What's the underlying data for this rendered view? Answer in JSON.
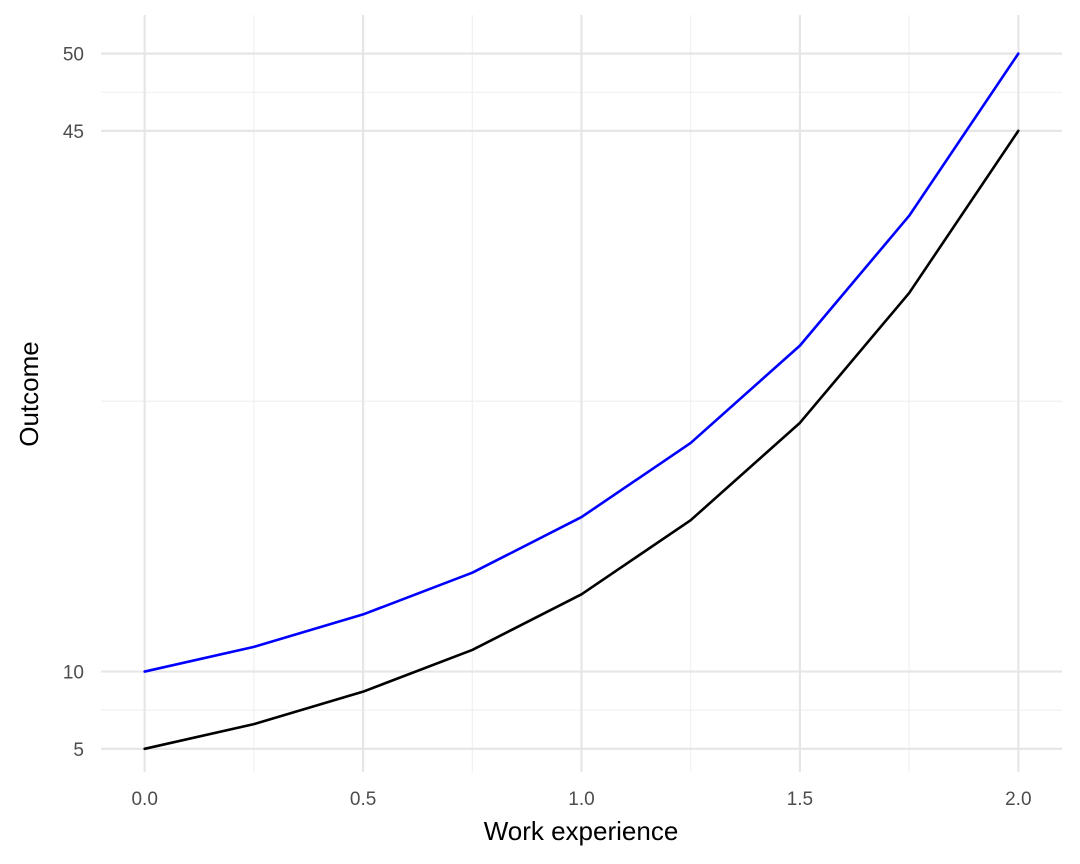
{
  "chart_data": {
    "type": "line",
    "title": "",
    "xlabel": "Work experience",
    "ylabel": "Outcome",
    "xlim": [
      -0.1,
      2.1
    ],
    "ylim": [
      3.5,
      52.5
    ],
    "x_ticks": [
      0.0,
      0.5,
      1.0,
      1.5,
      2.0
    ],
    "x_tick_labels": [
      "0.0",
      "0.5",
      "1.0",
      "1.5",
      "2.0"
    ],
    "y_ticks": [
      5,
      10,
      45,
      50
    ],
    "y_tick_labels": [
      "5",
      "10",
      "45",
      "50"
    ],
    "x_minor_ticks": [
      0.25,
      0.75,
      1.25,
      1.75
    ],
    "y_minor_ticks": [
      7.5,
      27.5,
      47.5
    ],
    "grid": true,
    "legend": "none",
    "series": [
      {
        "color": "#0000ff",
        "x": [
          0.0,
          0.25,
          0.5,
          0.75,
          1.0,
          1.25,
          1.5,
          1.75,
          2.0
        ],
        "y": [
          10.0,
          11.6,
          13.7,
          16.4,
          20.0,
          24.8,
          31.1,
          39.5,
          50.0
        ]
      },
      {
        "color": "#000000",
        "x": [
          0.0,
          0.25,
          0.5,
          0.75,
          1.0,
          1.25,
          1.5,
          1.75,
          2.0
        ],
        "y": [
          5.0,
          6.6,
          8.7,
          11.4,
          15.0,
          19.8,
          26.1,
          34.5,
          45.0
        ]
      }
    ]
  }
}
